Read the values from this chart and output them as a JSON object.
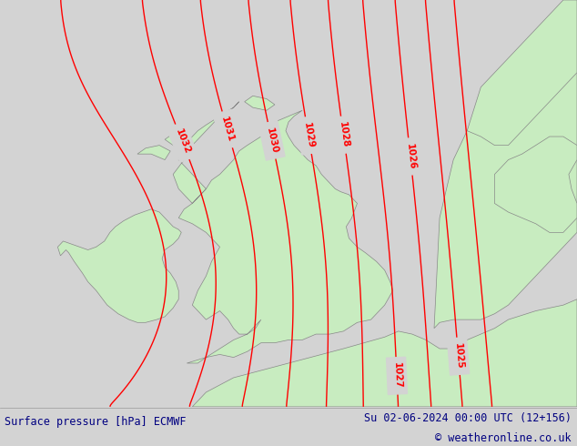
{
  "title_left": "Surface pressure [hPa] ECMWF",
  "title_right": "Su 02-06-2024 00:00 UTC (12+156)",
  "copyright": "© weatheronline.co.uk",
  "bg_color": "#d3d3d3",
  "land_color": "#c8ecc0",
  "sea_color": "#d3d3d3",
  "contour_color": "#ff0000",
  "border_color": "#888888",
  "text_color": "#000080",
  "bottom_bar_color": "#e0e0e0",
  "contour_linewidth": 1.0,
  "label_fontsize": 7.5,
  "footer_fontsize": 8.5,
  "figsize": [
    6.34,
    4.9
  ],
  "dpi": 100,
  "map_extent": [
    -12.5,
    8.5,
    48.5,
    62.5
  ]
}
